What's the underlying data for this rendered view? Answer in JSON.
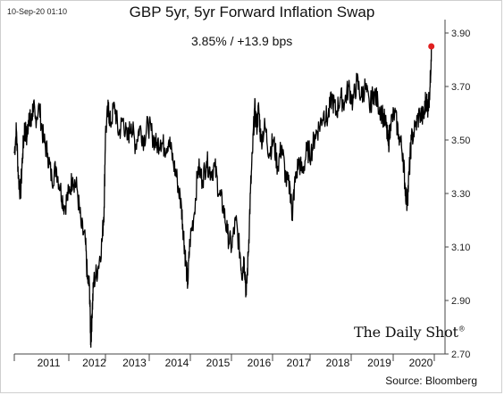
{
  "header": {
    "date_stamp": "10-Sep-20 01:10",
    "title": "GBP 5yr, 5yr Forward Inflation Swap",
    "subtitle": "3.85%  /  +13.9 bps"
  },
  "footer": {
    "source": "Source: Bloomberg",
    "brand": "The Daily Shot",
    "brand_mark": "®"
  },
  "chart_data": {
    "type": "line",
    "title": "GBP 5yr, 5yr Forward Inflation Swap",
    "subtitle": "3.85%  /  +13.9 bps",
    "xlabel": "",
    "ylabel": "",
    "x_tick_labels": [
      "2011",
      "2012",
      "2013",
      "2014",
      "2015",
      "2016",
      "2017",
      "2018",
      "2019",
      "2020"
    ],
    "y_tick_labels": [
      "2.70",
      "2.90",
      "3.10",
      "3.30",
      "3.50",
      "3.70",
      "3.90"
    ],
    "ylim": [
      2.7,
      3.9
    ],
    "y_axis_side": "right",
    "grid": false,
    "line_color": "#000000",
    "last_point_color": "#e02020",
    "series": [
      {
        "values": [
          [
            2010.7,
            3.45
          ],
          [
            2010.75,
            3.54
          ],
          [
            2010.8,
            3.36
          ],
          [
            2010.85,
            3.3
          ],
          [
            2010.9,
            3.45
          ],
          [
            2010.95,
            3.55
          ],
          [
            2011.0,
            3.5
          ],
          [
            2011.05,
            3.6
          ],
          [
            2011.1,
            3.55
          ],
          [
            2011.15,
            3.63
          ],
          [
            2011.2,
            3.58
          ],
          [
            2011.3,
            3.62
          ],
          [
            2011.4,
            3.5
          ],
          [
            2011.5,
            3.45
          ],
          [
            2011.6,
            3.35
          ],
          [
            2011.7,
            3.4
          ],
          [
            2011.8,
            3.32
          ],
          [
            2011.9,
            3.25
          ],
          [
            2012.0,
            3.3
          ],
          [
            2012.1,
            3.36
          ],
          [
            2012.2,
            3.32
          ],
          [
            2012.3,
            3.18
          ],
          [
            2012.4,
            3.12
          ],
          [
            2012.45,
            2.98
          ],
          [
            2012.5,
            2.95
          ],
          [
            2012.53,
            2.74
          ],
          [
            2012.56,
            2.85
          ],
          [
            2012.6,
            2.97
          ],
          [
            2012.7,
            3.02
          ],
          [
            2012.8,
            3.12
          ],
          [
            2012.85,
            3.25
          ],
          [
            2012.88,
            3.52
          ],
          [
            2012.95,
            3.62
          ],
          [
            2013.0,
            3.56
          ],
          [
            2013.1,
            3.63
          ],
          [
            2013.2,
            3.52
          ],
          [
            2013.3,
            3.58
          ],
          [
            2013.4,
            3.5
          ],
          [
            2013.5,
            3.56
          ],
          [
            2013.6,
            3.48
          ],
          [
            2013.7,
            3.55
          ],
          [
            2013.8,
            3.5
          ],
          [
            2013.9,
            3.56
          ],
          [
            2014.0,
            3.52
          ],
          [
            2014.1,
            3.48
          ],
          [
            2014.2,
            3.5
          ],
          [
            2014.3,
            3.47
          ],
          [
            2014.4,
            3.5
          ],
          [
            2014.5,
            3.42
          ],
          [
            2014.6,
            3.35
          ],
          [
            2014.7,
            3.25
          ],
          [
            2014.75,
            3.15
          ],
          [
            2014.8,
            3.05
          ],
          [
            2014.85,
            2.96
          ],
          [
            2014.9,
            3.12
          ],
          [
            2015.0,
            3.22
          ],
          [
            2015.1,
            3.4
          ],
          [
            2015.2,
            3.35
          ],
          [
            2015.3,
            3.42
          ],
          [
            2015.4,
            3.38
          ],
          [
            2015.5,
            3.4
          ],
          [
            2015.6,
            3.3
          ],
          [
            2015.7,
            3.25
          ],
          [
            2015.8,
            3.15
          ],
          [
            2015.9,
            3.1
          ],
          [
            2016.0,
            3.2
          ],
          [
            2016.1,
            3.08
          ],
          [
            2016.15,
            3.0
          ],
          [
            2016.2,
            3.06
          ],
          [
            2016.25,
            2.92
          ],
          [
            2016.3,
            3.08
          ],
          [
            2016.35,
            3.3
          ],
          [
            2016.4,
            3.45
          ],
          [
            2016.45,
            3.62
          ],
          [
            2016.5,
            3.55
          ],
          [
            2016.55,
            3.62
          ],
          [
            2016.6,
            3.5
          ],
          [
            2016.7,
            3.55
          ],
          [
            2016.8,
            3.45
          ],
          [
            2016.9,
            3.5
          ],
          [
            2017.0,
            3.4
          ],
          [
            2017.1,
            3.48
          ],
          [
            2017.2,
            3.35
          ],
          [
            2017.3,
            3.32
          ],
          [
            2017.35,
            3.22
          ],
          [
            2017.4,
            3.32
          ],
          [
            2017.5,
            3.42
          ],
          [
            2017.6,
            3.38
          ],
          [
            2017.7,
            3.46
          ],
          [
            2017.8,
            3.45
          ],
          [
            2017.9,
            3.52
          ],
          [
            2018.0,
            3.55
          ],
          [
            2018.1,
            3.6
          ],
          [
            2018.2,
            3.58
          ],
          [
            2018.3,
            3.66
          ],
          [
            2018.4,
            3.6
          ],
          [
            2018.5,
            3.66
          ],
          [
            2018.6,
            3.64
          ],
          [
            2018.7,
            3.7
          ],
          [
            2018.8,
            3.64
          ],
          [
            2018.9,
            3.72
          ],
          [
            2019.0,
            3.66
          ],
          [
            2019.1,
            3.7
          ],
          [
            2019.2,
            3.62
          ],
          [
            2019.3,
            3.68
          ],
          [
            2019.4,
            3.64
          ],
          [
            2019.5,
            3.6
          ],
          [
            2019.6,
            3.55
          ],
          [
            2019.65,
            3.48
          ],
          [
            2019.7,
            3.56
          ],
          [
            2019.8,
            3.6
          ],
          [
            2019.9,
            3.52
          ],
          [
            2020.0,
            3.45
          ],
          [
            2020.05,
            3.33
          ],
          [
            2020.1,
            3.26
          ],
          [
            2020.15,
            3.38
          ],
          [
            2020.2,
            3.5
          ],
          [
            2020.3,
            3.55
          ],
          [
            2020.4,
            3.6
          ],
          [
            2020.5,
            3.58
          ],
          [
            2020.55,
            3.66
          ],
          [
            2020.6,
            3.62
          ],
          [
            2020.65,
            3.7
          ],
          [
            2020.68,
            3.85
          ]
        ]
      }
    ],
    "last_value": 3.85
  }
}
